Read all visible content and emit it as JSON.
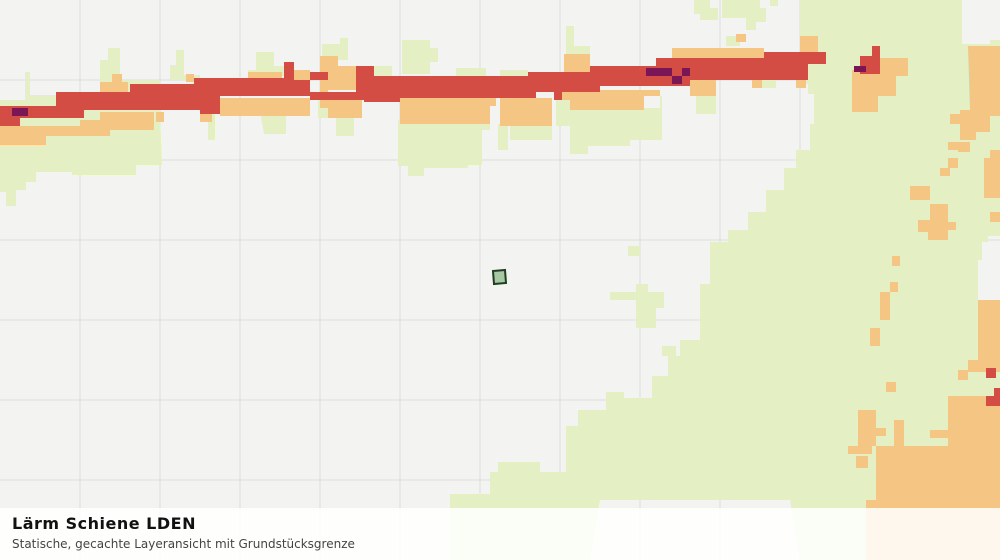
{
  "layer": {
    "title": "Lärm Schiene LDEN",
    "subtitle": "Statische, gecachte Layeransicht mit Grundstücksgrenze"
  },
  "colors": {
    "background": "#f3f4f2",
    "grid": "#dcdedb",
    "noise_low": "#e4f0c4",
    "noise_mid": "#f5c584",
    "noise_high": "#d44d45",
    "noise_highest": "#7a1656",
    "parcel_fill": "#a8c8a4",
    "parcel_stroke": "#1f3d23"
  },
  "icons": {
    "parcel": "parcel-boundary-marker"
  }
}
